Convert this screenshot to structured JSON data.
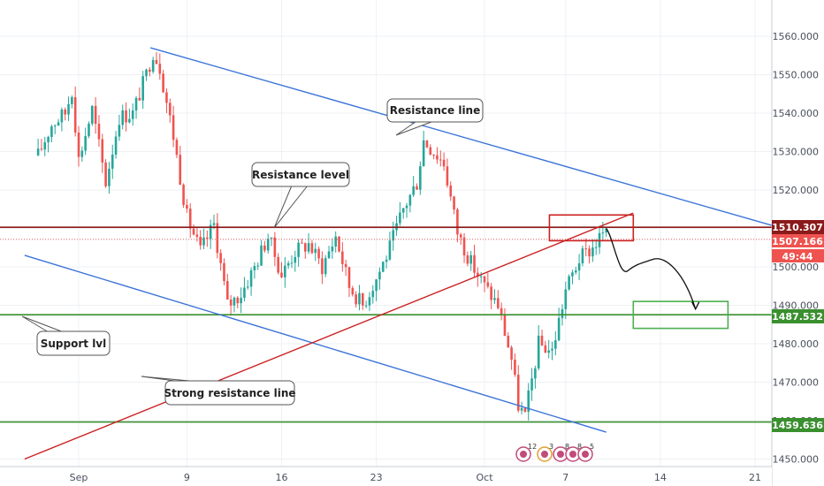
{
  "chart_data": {
    "type": "candlestick",
    "y_axis": {
      "range": [
        1450,
        1567
      ],
      "ticks": [
        "1560.000",
        "1550.000",
        "1540.000",
        "1530.000",
        "1520.000",
        "1510.000",
        "1500.000",
        "1490.000",
        "1480.000",
        "1470.000",
        "1460.000",
        "1450.000"
      ]
    },
    "x_axis": {
      "range_days": [
        "Aug 27",
        "Oct 23"
      ],
      "ticks": [
        {
          "label": "Sep",
          "day": "Sep 1"
        },
        {
          "label": "9",
          "day": "Sep 9"
        },
        {
          "label": "16",
          "day": "Sep 16"
        },
        {
          "label": "23",
          "day": "Sep 23"
        },
        {
          "label": "Oct",
          "day": "Oct 1"
        },
        {
          "label": "7",
          "day": "Oct 7"
        },
        {
          "label": "14",
          "day": "Oct 14"
        },
        {
          "label": "21",
          "day": "Oct 21"
        }
      ]
    },
    "price_path": [
      [
        -3.0,
        1529
      ],
      [
        -2.0,
        1537
      ],
      [
        -1.0,
        1540
      ],
      [
        -0.5,
        1546
      ],
      [
        0.0,
        1528
      ],
      [
        1.0,
        1541
      ],
      [
        2.0,
        1522
      ],
      [
        3.0,
        1539
      ],
      [
        4.0,
        1540
      ],
      [
        5.0,
        1550
      ],
      [
        5.5,
        1556
      ],
      [
        6.0,
        1552
      ],
      [
        7.0,
        1534
      ],
      [
        8.0,
        1513
      ],
      [
        9.0,
        1504
      ],
      [
        10.0,
        1511
      ],
      [
        11.0,
        1490
      ],
      [
        12.0,
        1493
      ],
      [
        13.0,
        1500
      ],
      [
        14.0,
        1508
      ],
      [
        15.0,
        1498
      ],
      [
        16.0,
        1504
      ],
      [
        17.0,
        1506
      ],
      [
        18.0,
        1500
      ],
      [
        19.0,
        1508
      ],
      [
        20.0,
        1495
      ],
      [
        21.0,
        1490
      ],
      [
        22.0,
        1497
      ],
      [
        23.0,
        1505
      ],
      [
        24.0,
        1515
      ],
      [
        25.0,
        1522
      ],
      [
        25.5,
        1533
      ],
      [
        26.0,
        1531
      ],
      [
        27.0,
        1527
      ],
      [
        28.0,
        1509
      ],
      [
        29.0,
        1501
      ],
      [
        30.0,
        1495
      ],
      [
        31.0,
        1490
      ],
      [
        32.0,
        1476
      ],
      [
        32.5,
        1464
      ],
      [
        33.0,
        1461
      ],
      [
        34.0,
        1480
      ],
      [
        35.0,
        1478
      ],
      [
        36.0,
        1494
      ],
      [
        37.0,
        1502
      ],
      [
        38.0,
        1505
      ],
      [
        38.8,
        1509
      ],
      [
        39.2,
        1507
      ]
    ],
    "horizontal_levels": [
      {
        "name": "resistance",
        "price": 1510.307,
        "color": "#8b1a1a"
      },
      {
        "name": "support",
        "price": 1487.532,
        "color": "#3a8f2f"
      },
      {
        "name": "bottom",
        "price": 1459.636,
        "color": "#3a8f2f"
      },
      {
        "name": "current",
        "price": 1507.166,
        "color": "#e05a5a"
      }
    ],
    "trend_lines": [
      {
        "name": "upper-channel",
        "color": "#3b73d9",
        "from": [
          5.3,
          1557
        ],
        "to": [
          58.0,
          1504
        ]
      },
      {
        "name": "lower-channel",
        "color": "#3b73d9",
        "from": [
          -4.0,
          1503
        ],
        "to": [
          39.0,
          1457
        ]
      },
      {
        "name": "strong-resistance",
        "color": "#cc2222",
        "from": [
          -4.0,
          1450
        ],
        "to": [
          41.0,
          1514
        ]
      }
    ],
    "boxes": [
      {
        "name": "red-box",
        "color": "#cc2222",
        "from": [
          34.8,
          1513.5
        ],
        "to": [
          41.0,
          1506.8
        ]
      },
      {
        "name": "green-box",
        "color": "#4caf50",
        "from": [
          41.0,
          1491
        ],
        "to": [
          48.0,
          1484
        ]
      }
    ],
    "arrow_path": [
      [
        39.0,
        1510
      ],
      [
        40.6,
        1499
      ],
      [
        42.5,
        1502
      ],
      [
        44.5,
        1499
      ],
      [
        45.6,
        1489
      ]
    ],
    "annotations": {
      "resistance_line": "Resistance line",
      "resistance_level": "Resistance level",
      "support": "Support lvl",
      "strong_resistance": "Strong resistance line"
    },
    "price_tags": {
      "resistance": "1510.307",
      "current": "1507.166",
      "countdown": "49:44",
      "support": "1487.532",
      "bottom": "1459.636"
    },
    "events": [
      "12",
      "3",
      "8",
      "8",
      "5"
    ],
    "colors": {
      "up": "#26a69a",
      "down": "#ef5350"
    }
  }
}
